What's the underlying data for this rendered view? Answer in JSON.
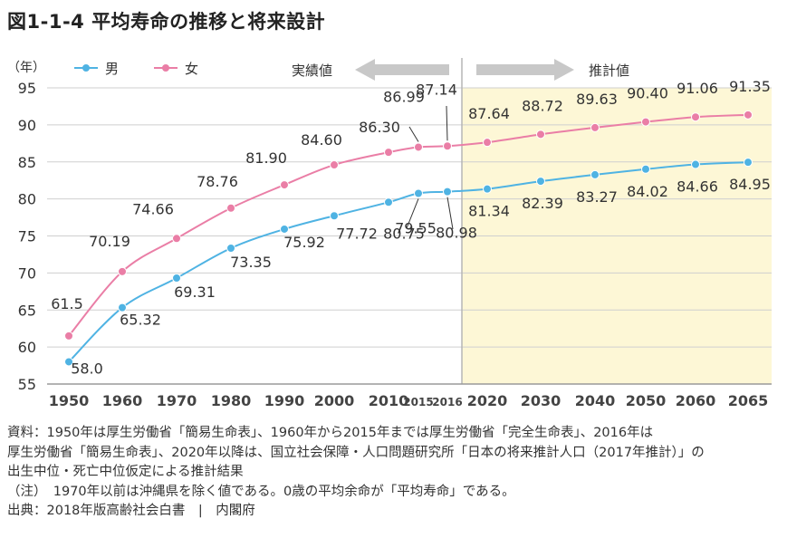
{
  "title": "図1-1-4 平均寿命の推移と将来設計",
  "chart_data": {
    "type": "line",
    "ylabel": "（年）",
    "ylim": [
      55,
      95
    ],
    "yticks": [
      55,
      60,
      65,
      70,
      75,
      80,
      85,
      90,
      95
    ],
    "x_ticks": [
      "1950",
      "1960",
      "1970",
      "1980",
      "1990",
      "2000",
      "2010",
      "2015",
      "2016",
      "2020",
      "2030",
      "2040",
      "2050",
      "2060",
      "2065"
    ],
    "grid": true,
    "legend": "top-left",
    "series": [
      {
        "name": "男",
        "color": "#4fb3e3",
        "values": [
          58.0,
          65.32,
          69.31,
          73.35,
          75.92,
          77.72,
          79.55,
          80.75,
          80.98,
          81.34,
          82.39,
          83.27,
          84.02,
          84.66,
          84.95
        ],
        "labels": [
          "58.0",
          "65.32",
          "69.31",
          "73.35",
          "75.92",
          "77.72",
          "79.55",
          "80.75",
          "80.98",
          "81.34",
          "82.39",
          "83.27",
          "84.02",
          "84.66",
          "84.95"
        ]
      },
      {
        "name": "女",
        "color": "#ea7ea6",
        "values": [
          61.5,
          70.19,
          74.66,
          78.76,
          81.9,
          84.6,
          86.3,
          86.99,
          87.14,
          87.64,
          88.72,
          89.63,
          90.4,
          91.06,
          91.35
        ],
        "labels": [
          "61.5",
          "70.19",
          "74.66",
          "78.76",
          "81.90",
          "84.60",
          "86.30",
          "86.99",
          "87.14",
          "87.64",
          "88.72",
          "89.63",
          "90.40",
          "91.06",
          "91.35"
        ]
      }
    ],
    "annotations": {
      "actual": "実績値",
      "projected": "推計値"
    },
    "projection_fill": "#fdf7d6",
    "arrow_color": "#c8c8c8"
  },
  "notes": [
    "資料：1950年は厚生労働省「簡易生命表」、1960年から2015年までは厚生労働省「完全生命表」、2016年は",
    "厚生労働省「簡易生命表」、2020年以降は、国立社会保障・人口問題研究所「日本の将来推計人口（2017年推計）」の",
    "出生中位・死亡中位仮定による推計結果",
    "（注）　1970年以前は沖縄県を除く値である。0歳の平均余命が「平均寿命」である。",
    "出典：2018年版高齢社会白書　|　内閣府"
  ]
}
